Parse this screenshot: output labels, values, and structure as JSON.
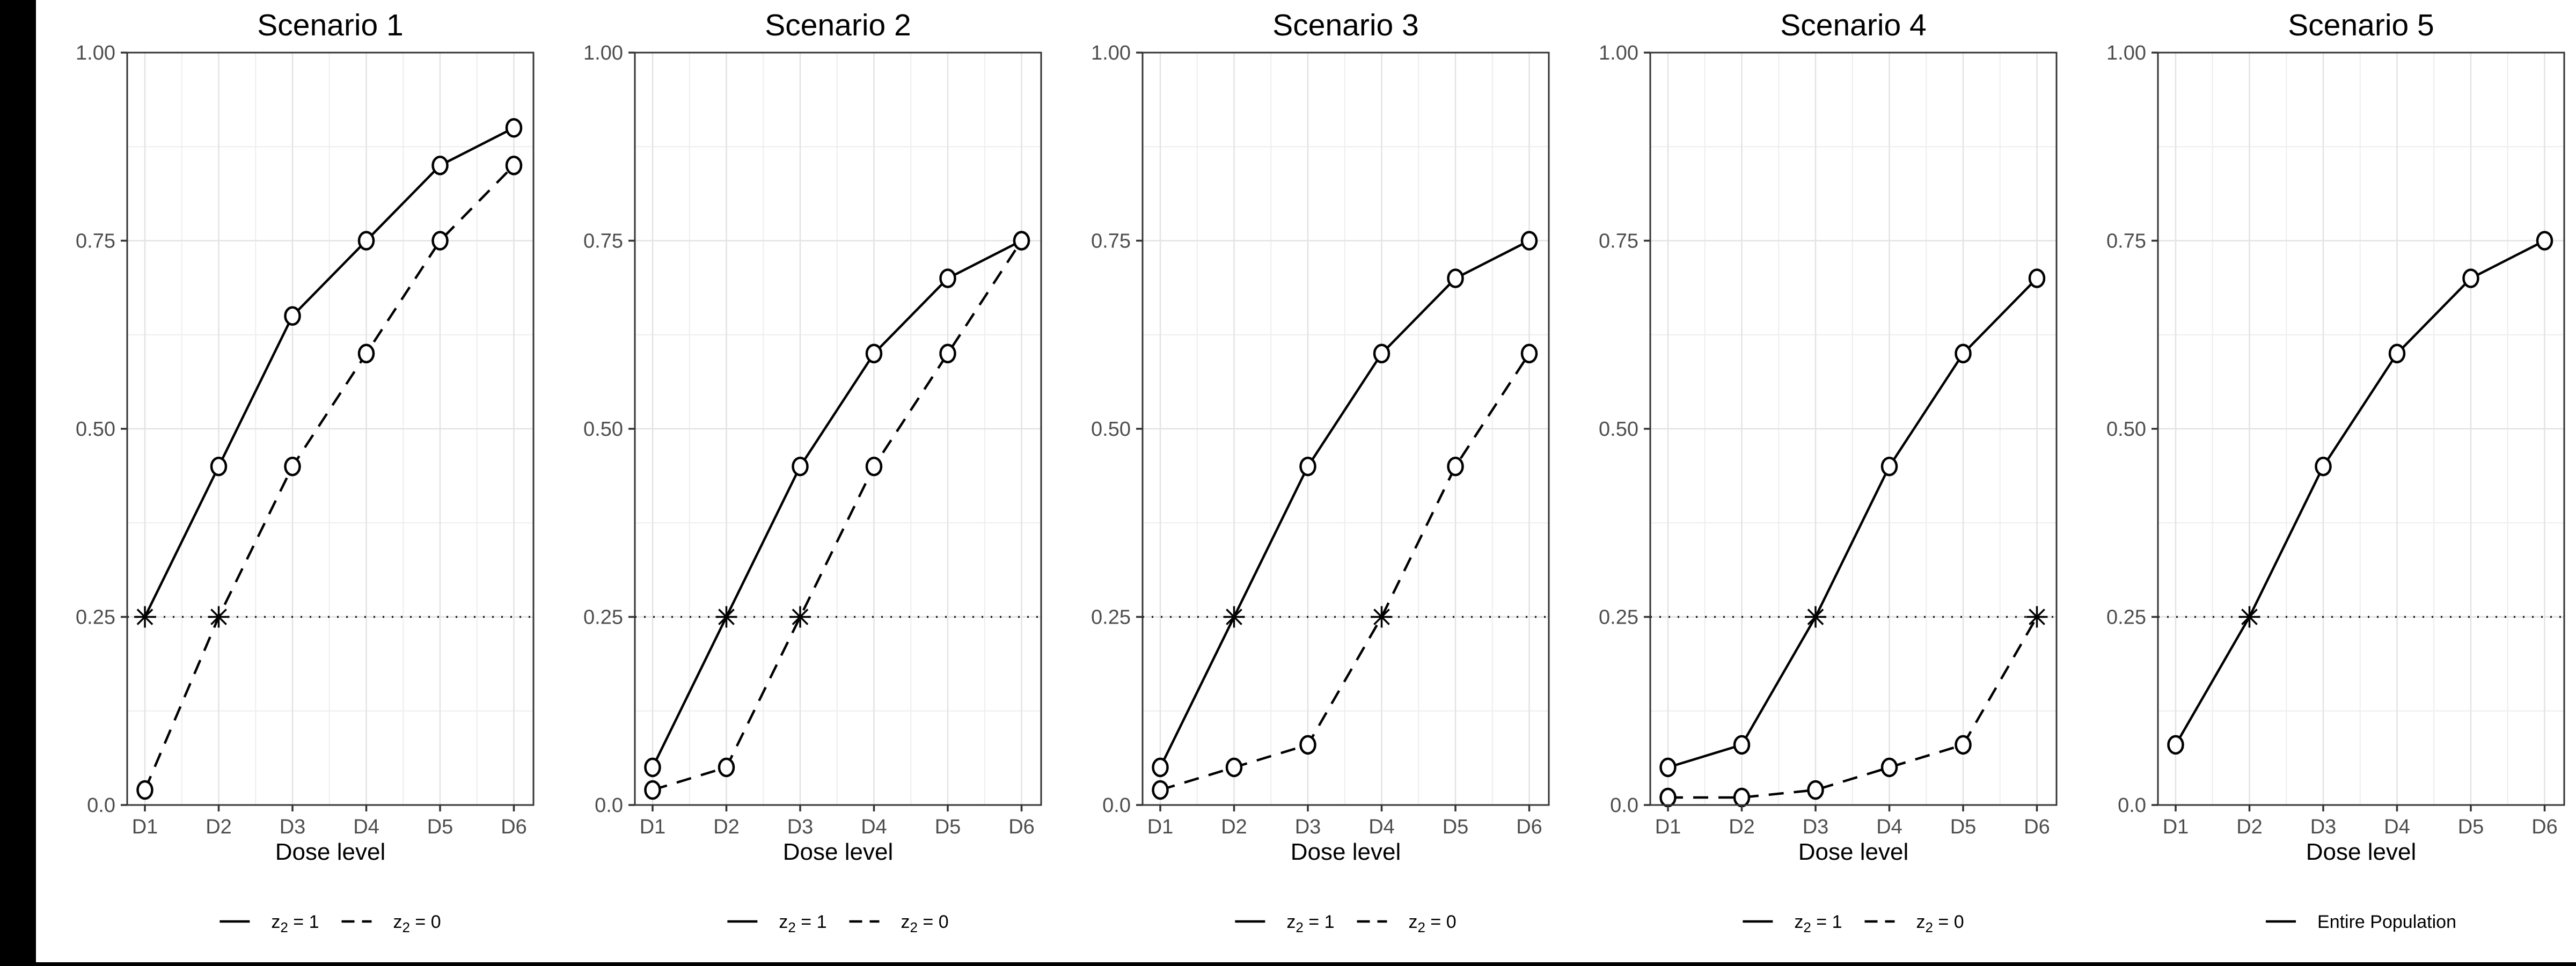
{
  "figure": {
    "canvas_background": "#000000",
    "figure_background": "#ffffff",
    "series_color": "#000000",
    "grid_major_color": "#e3e3e3",
    "grid_minor_color": "#eeeeee",
    "panel_border_color": "#343434",
    "tick_color": "#333333",
    "axis_text_color": "#4d4d4d",
    "reference_line_color": "#1a1a1a"
  },
  "axes": {
    "x_title": "Dose level",
    "x_categories": [
      "D1",
      "D2",
      "D3",
      "D4",
      "D5",
      "D6"
    ],
    "y_tick_labels": [
      "1.00",
      "0.75",
      "0.50",
      "0.25",
      "0.0"
    ],
    "y_tick_values": [
      1.0,
      0.75,
      0.5,
      0.25,
      0.0
    ],
    "y_minor_values": [
      0.875,
      0.625,
      0.375,
      0.125
    ],
    "ylim": [
      0,
      1
    ],
    "reference_line_value": 0.25,
    "grid": true,
    "legend_position": "bottom"
  },
  "chart_data": [
    {
      "type": "line",
      "title": "Scenario 1",
      "xlabel": "Dose level",
      "ylabel": "",
      "categories": [
        "D1",
        "D2",
        "D3",
        "D4",
        "D5",
        "D6"
      ],
      "ylim": [
        0,
        1
      ],
      "reference_line": 0.25,
      "series": [
        {
          "name": "z2 = 1",
          "linetype": "solid",
          "marker": "circle",
          "star_index": 0,
          "values": [
            0.25,
            0.45,
            0.65,
            0.75,
            0.85,
            0.9
          ]
        },
        {
          "name": "z2 = 0",
          "linetype": "dashed",
          "marker": "circle",
          "star_index": 1,
          "values": [
            0.02,
            0.25,
            0.45,
            0.6,
            0.75,
            0.85
          ]
        }
      ],
      "legend_items": [
        {
          "linetype": "solid",
          "segments": [
            {
              "t": "z"
            },
            {
              "t": "2",
              "sub": true
            },
            {
              "t": " = 1"
            }
          ]
        },
        {
          "linetype": "dashed",
          "segments": [
            {
              "t": "z"
            },
            {
              "t": "2",
              "sub": true
            },
            {
              "t": " = 0"
            }
          ]
        }
      ]
    },
    {
      "type": "line",
      "title": "Scenario 2",
      "xlabel": "Dose level",
      "ylabel": "",
      "categories": [
        "D1",
        "D2",
        "D3",
        "D4",
        "D5",
        "D6"
      ],
      "ylim": [
        0,
        1
      ],
      "reference_line": 0.25,
      "series": [
        {
          "name": "z2 = 1",
          "linetype": "solid",
          "marker": "circle",
          "star_index": 1,
          "values": [
            0.05,
            0.25,
            0.45,
            0.6,
            0.7,
            0.75
          ]
        },
        {
          "name": "z2 = 0",
          "linetype": "dashed",
          "marker": "circle",
          "star_index": 2,
          "values": [
            0.02,
            0.05,
            0.25,
            0.45,
            0.6,
            0.75
          ]
        }
      ],
      "legend_items": [
        {
          "linetype": "solid",
          "segments": [
            {
              "t": "z"
            },
            {
              "t": "2",
              "sub": true
            },
            {
              "t": " = 1"
            }
          ]
        },
        {
          "linetype": "dashed",
          "segments": [
            {
              "t": "z"
            },
            {
              "t": "2",
              "sub": true
            },
            {
              "t": " = 0"
            }
          ]
        }
      ]
    },
    {
      "type": "line",
      "title": "Scenario 3",
      "xlabel": "Dose level",
      "ylabel": "",
      "categories": [
        "D1",
        "D2",
        "D3",
        "D4",
        "D5",
        "D6"
      ],
      "ylim": [
        0,
        1
      ],
      "reference_line": 0.25,
      "series": [
        {
          "name": "z2 = 1",
          "linetype": "solid",
          "marker": "circle",
          "star_index": 1,
          "values": [
            0.05,
            0.25,
            0.45,
            0.6,
            0.7,
            0.75
          ]
        },
        {
          "name": "z2 = 0",
          "linetype": "dashed",
          "marker": "circle",
          "star_index": 3,
          "values": [
            0.02,
            0.05,
            0.08,
            0.25,
            0.45,
            0.6
          ]
        }
      ],
      "legend_items": [
        {
          "linetype": "solid",
          "segments": [
            {
              "t": "z"
            },
            {
              "t": "2",
              "sub": true
            },
            {
              "t": " = 1"
            }
          ]
        },
        {
          "linetype": "dashed",
          "segments": [
            {
              "t": "z"
            },
            {
              "t": "2",
              "sub": true
            },
            {
              "t": " = 0"
            }
          ]
        }
      ]
    },
    {
      "type": "line",
      "title": "Scenario 4",
      "xlabel": "Dose level",
      "ylabel": "",
      "categories": [
        "D1",
        "D2",
        "D3",
        "D4",
        "D5",
        "D6"
      ],
      "ylim": [
        0,
        1
      ],
      "reference_line": 0.25,
      "series": [
        {
          "name": "z2 = 1",
          "linetype": "solid",
          "marker": "circle",
          "star_index": 2,
          "values": [
            0.05,
            0.08,
            0.25,
            0.45,
            0.6,
            0.7
          ]
        },
        {
          "name": "z2 = 0",
          "linetype": "dashed",
          "marker": "circle",
          "star_index": 5,
          "values": [
            0.01,
            0.01,
            0.02,
            0.05,
            0.08,
            0.25
          ]
        }
      ],
      "legend_items": [
        {
          "linetype": "solid",
          "segments": [
            {
              "t": "z"
            },
            {
              "t": "2",
              "sub": true
            },
            {
              "t": " = 1"
            }
          ]
        },
        {
          "linetype": "dashed",
          "segments": [
            {
              "t": "z"
            },
            {
              "t": "2",
              "sub": true
            },
            {
              "t": " = 0"
            }
          ]
        }
      ]
    },
    {
      "type": "line",
      "title": "Scenario 5",
      "xlabel": "Dose level",
      "ylabel": "",
      "categories": [
        "D1",
        "D2",
        "D3",
        "D4",
        "D5",
        "D6"
      ],
      "ylim": [
        0,
        1
      ],
      "reference_line": 0.25,
      "series": [
        {
          "name": "Entire Population",
          "linetype": "solid",
          "marker": "circle",
          "star_index": 1,
          "values": [
            0.08,
            0.25,
            0.45,
            0.6,
            0.7,
            0.75
          ]
        }
      ],
      "legend_items": [
        {
          "linetype": "solid",
          "segments": [
            {
              "t": "Entire Population"
            }
          ]
        }
      ]
    }
  ]
}
